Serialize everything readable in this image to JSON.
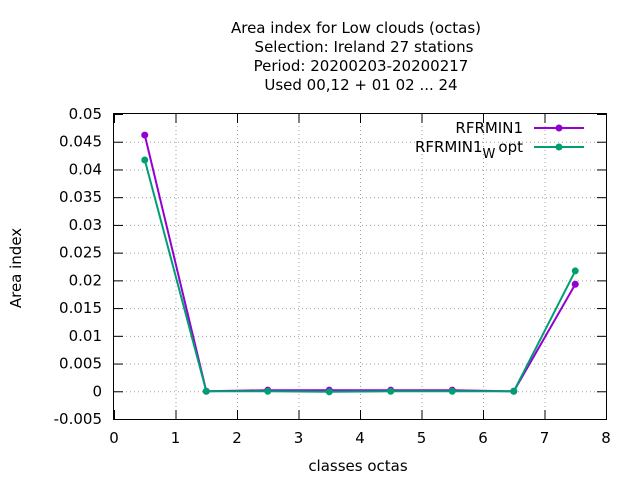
{
  "chart_data": {
    "type": "line",
    "title_lines": [
      "Area index  for Low clouds (octas)",
      "Selection: Ireland     27 stations",
      "Period: 20200203-20200217",
      "Used  00,12  + 01 02 ... 24"
    ],
    "xlabel": "classes octas",
    "ylabel": "Area index",
    "xlim": [
      0,
      8
    ],
    "ylim": [
      -0.005,
      0.05
    ],
    "x_ticks": [
      0,
      1,
      2,
      3,
      4,
      5,
      6,
      7,
      8
    ],
    "y_ticks": [
      -0.005,
      0,
      0.005,
      0.01,
      0.015,
      0.02,
      0.025,
      0.03,
      0.035,
      0.04,
      0.045,
      0.05
    ],
    "y_tick_labels": [
      "-0.005",
      "0",
      "0.005",
      "0.01",
      "0.015",
      "0.02",
      "0.025",
      "0.03",
      "0.035",
      "0.04",
      "0.045",
      "0.05"
    ],
    "grid": true,
    "legend_position": "top-right",
    "series": [
      {
        "name": "RFRMIN1",
        "color": "#9400d3",
        "x": [
          0.5,
          1.5,
          2.5,
          3.5,
          4.5,
          5.5,
          6.5,
          7.5
        ],
        "y": [
          0.0462,
          0.0,
          0.0002,
          0.0002,
          0.0002,
          0.0002,
          0.0,
          0.0193
        ]
      },
      {
        "name": "RFRMIN1",
        "name_subscript": "W",
        "name_suffix": "opt",
        "color": "#009e73",
        "x": [
          0.5,
          1.5,
          2.5,
          3.5,
          4.5,
          5.5,
          6.5,
          7.5
        ],
        "y": [
          0.0417,
          0.0,
          0.0,
          -0.0001,
          0.0,
          0.0,
          0.0,
          0.0217
        ]
      }
    ]
  }
}
